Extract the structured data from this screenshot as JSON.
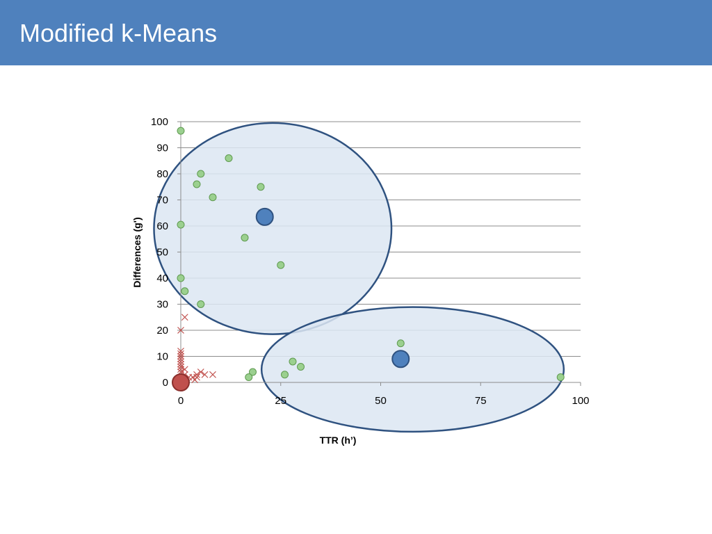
{
  "slide": {
    "title": "Modified k-Means"
  },
  "chart_data": {
    "type": "scatter",
    "title": "",
    "xlabel": "TTR (h’)",
    "ylabel": "Differences (g')",
    "xlim": [
      0,
      100
    ],
    "ylim": [
      0,
      100
    ],
    "x_ticks": [
      0,
      25,
      50,
      75,
      100
    ],
    "y_ticks": [
      0,
      10,
      20,
      30,
      40,
      50,
      60,
      70,
      80,
      90,
      100
    ],
    "grid": "horizontal",
    "legend": "none",
    "colors": {
      "point_fill": "#9bd08f",
      "point_stroke": "#5f9a50",
      "cross": "#c0504d",
      "centroid_blue": "#4f81bd",
      "centroid_red": "#c0504d",
      "cluster_fill": "#dce6f2",
      "cluster_stroke": "#2f5280"
    },
    "series": [
      {
        "marker": "circle",
        "points": [
          [
            0,
            96.5
          ],
          [
            12,
            86
          ],
          [
            5,
            80
          ],
          [
            4,
            76
          ],
          [
            20,
            75
          ],
          [
            8,
            71
          ],
          [
            0,
            60.5
          ],
          [
            16,
            55.5
          ],
          [
            25,
            45
          ],
          [
            0,
            40
          ],
          [
            1,
            35
          ],
          [
            5,
            30
          ],
          [
            55,
            15
          ],
          [
            28,
            8
          ],
          [
            30,
            6
          ],
          [
            18,
            4
          ],
          [
            17,
            2
          ],
          [
            26,
            3
          ],
          [
            95,
            2
          ]
        ]
      },
      {
        "marker": "cross",
        "points": [
          [
            1,
            25
          ],
          [
            0,
            20
          ],
          [
            0,
            12
          ],
          [
            0,
            11
          ],
          [
            0,
            10
          ],
          [
            0,
            9
          ],
          [
            0,
            8
          ],
          [
            0,
            7
          ],
          [
            0,
            6
          ],
          [
            0,
            5
          ],
          [
            0,
            4
          ],
          [
            1,
            5
          ],
          [
            1,
            3
          ],
          [
            2,
            2
          ],
          [
            3,
            2
          ],
          [
            3.5,
            1
          ],
          [
            4,
            2
          ],
          [
            4,
            3
          ],
          [
            5,
            4
          ],
          [
            6,
            3
          ],
          [
            8,
            3
          ],
          [
            1,
            1
          ]
        ]
      },
      {
        "marker": "centroid",
        "points": [
          [
            21,
            63.5
          ],
          [
            55,
            9
          ],
          [
            0,
            0
          ]
        ]
      }
    ],
    "clusters": [
      {
        "center": [
          23,
          59
        ],
        "rx": 29.7,
        "ry": 40.5
      },
      {
        "center": [
          58,
          5
        ],
        "rx": 37.8,
        "ry": 23.9
      }
    ]
  }
}
